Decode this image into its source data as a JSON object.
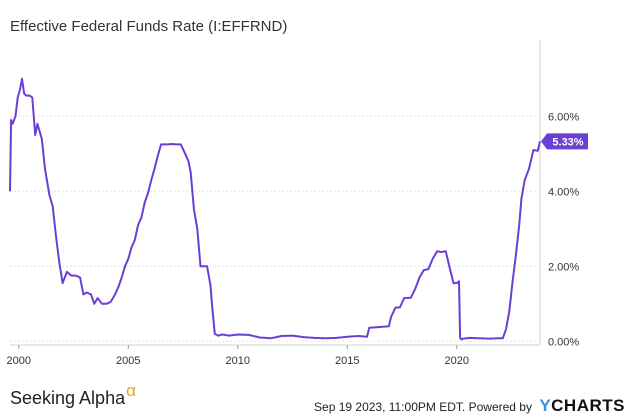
{
  "chart_data": {
    "type": "line",
    "title": "Effective Federal Funds Rate (I:EFFRND)",
    "xlabel": "",
    "ylabel": "",
    "x_ticks": [
      "2000",
      "2005",
      "2010",
      "2015",
      "2020"
    ],
    "y_ticks": [
      "6.00%",
      "4.00%",
      "2.00%",
      "0.00%"
    ],
    "xlim": [
      1999.6,
      2023.8
    ],
    "ylim": [
      -0.1,
      7.5
    ],
    "grid": "horizontal",
    "series": [
      {
        "name": "",
        "color": "#6b3fd4",
        "last_value_label": "5.33%",
        "x": [
          1999.6,
          1999.65,
          1999.72,
          1999.85,
          1999.95,
          2000.05,
          2000.15,
          2000.25,
          2000.35,
          2000.5,
          2000.62,
          2000.75,
          2000.85,
          2000.95,
          2001.05,
          2001.2,
          2001.4,
          2001.55,
          2001.7,
          2001.85,
          2002.0,
          2002.2,
          2002.4,
          2002.6,
          2002.8,
          2002.95,
          2003.1,
          2003.3,
          2003.45,
          2003.6,
          2003.8,
          2004.0,
          2004.2,
          2004.4,
          2004.55,
          2004.7,
          2004.85,
          2005.0,
          2005.15,
          2005.3,
          2005.45,
          2005.6,
          2005.75,
          2005.9,
          2006.05,
          2006.2,
          2006.35,
          2006.5,
          2006.65,
          2006.8,
          2007.0,
          2007.2,
          2007.4,
          2007.6,
          2007.75,
          2007.85,
          2008.0,
          2008.15,
          2008.3,
          2008.45,
          2008.6,
          2008.75,
          2008.85,
          2008.95,
          2009.1,
          2009.3,
          2009.6,
          2010.0,
          2010.5,
          2011.0,
          2011.5,
          2012.0,
          2012.5,
          2013.0,
          2013.5,
          2014.0,
          2014.5,
          2015.0,
          2015.5,
          2015.9,
          2016.0,
          2016.5,
          2016.9,
          2017.0,
          2017.2,
          2017.4,
          2017.6,
          2017.9,
          2018.1,
          2018.3,
          2018.5,
          2018.7,
          2018.9,
          2019.1,
          2019.3,
          2019.5,
          2019.7,
          2019.85,
          2020.0,
          2020.1,
          2020.15,
          2020.2,
          2020.3,
          2020.6,
          2021.0,
          2021.5,
          2021.9,
          2022.1,
          2022.25,
          2022.4,
          2022.55,
          2022.7,
          2022.85,
          2022.95,
          2023.1,
          2023.3,
          2023.5,
          2023.7,
          2023.8
        ],
        "y": [
          4.0,
          5.9,
          5.8,
          6.0,
          6.5,
          6.7,
          7.0,
          6.6,
          6.55,
          6.55,
          6.5,
          5.5,
          5.8,
          5.6,
          5.4,
          4.6,
          3.9,
          3.6,
          2.8,
          2.1,
          1.55,
          1.85,
          1.75,
          1.75,
          1.7,
          1.25,
          1.3,
          1.25,
          1.0,
          1.15,
          1.0,
          1.0,
          1.05,
          1.25,
          1.45,
          1.7,
          2.0,
          2.2,
          2.5,
          2.7,
          3.1,
          3.3,
          3.7,
          3.95,
          4.3,
          4.6,
          4.95,
          5.25,
          5.25,
          5.25,
          5.26,
          5.25,
          5.25,
          5.0,
          4.8,
          4.5,
          3.5,
          3.0,
          2.0,
          2.0,
          2.0,
          1.5,
          0.8,
          0.2,
          0.15,
          0.18,
          0.15,
          0.18,
          0.17,
          0.1,
          0.08,
          0.14,
          0.15,
          0.11,
          0.09,
          0.08,
          0.09,
          0.12,
          0.14,
          0.12,
          0.36,
          0.38,
          0.4,
          0.65,
          0.9,
          0.9,
          1.15,
          1.16,
          1.4,
          1.7,
          1.9,
          1.92,
          2.2,
          2.4,
          2.38,
          2.4,
          1.9,
          1.55,
          1.55,
          1.6,
          0.1,
          0.05,
          0.07,
          0.09,
          0.08,
          0.07,
          0.08,
          0.08,
          0.33,
          0.8,
          1.6,
          2.3,
          3.1,
          3.8,
          4.3,
          4.6,
          5.1,
          5.08,
          5.33
        ]
      }
    ]
  },
  "footer": {
    "brand": "Seeking Alpha",
    "brand_mark": "α",
    "timestamp": "Sep 19 2023, 11:00PM EDT.",
    "powered_by": "Powered by",
    "ycharts_y": "Y",
    "ycharts_rest": "CHARTS"
  }
}
